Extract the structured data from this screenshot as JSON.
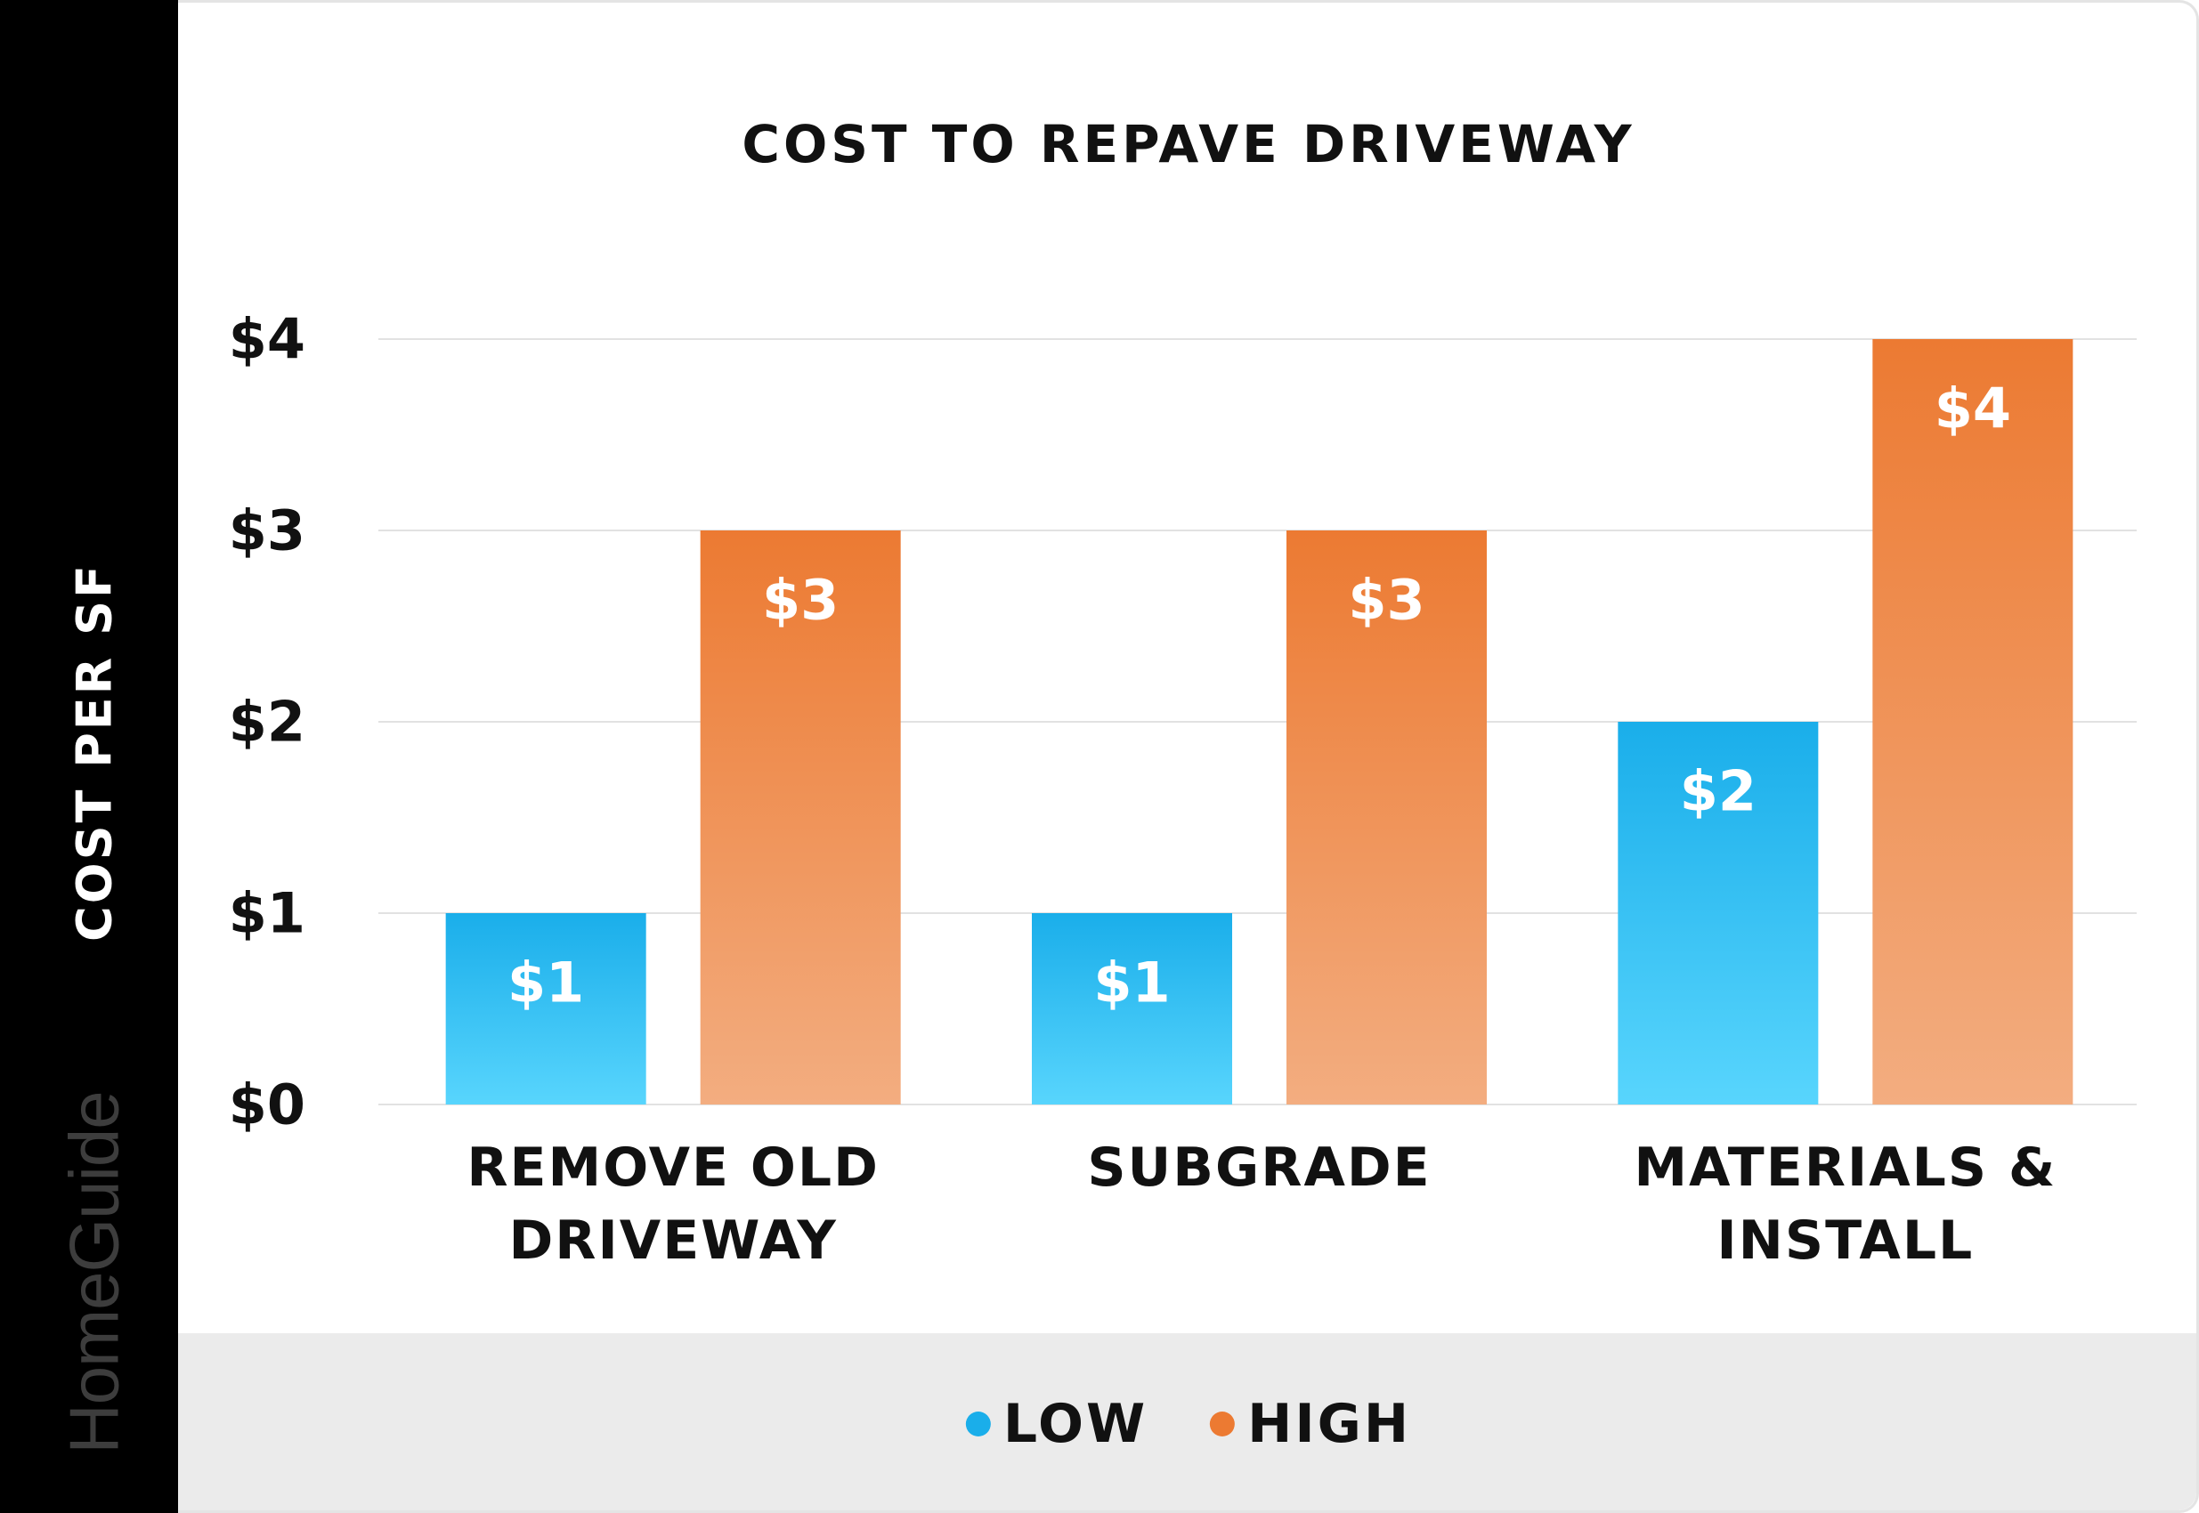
{
  "brand": {
    "logo_text": "HomeGuide"
  },
  "chart_data": {
    "type": "bar",
    "title": "COST TO REPAVE DRIVEWAY",
    "xlabel": "",
    "ylabel": "COST PER SF",
    "categories": [
      "REMOVE OLD DRIVEWAY",
      "SUBGRADE",
      "MATERIALS & INSTALL"
    ],
    "category_lines": [
      [
        "REMOVE OLD",
        "DRIVEWAY"
      ],
      [
        "SUBGRADE"
      ],
      [
        "MATERIALS &",
        "INSTALL"
      ]
    ],
    "series": [
      {
        "name": "LOW",
        "values": [
          1,
          1,
          2
        ],
        "value_labels": [
          "$1",
          "$1",
          "$2"
        ],
        "color": "#1aaeea",
        "color_light": "#58d5fd"
      },
      {
        "name": "HIGH",
        "values": [
          3,
          3,
          4
        ],
        "value_labels": [
          "$3",
          "$3",
          "$4"
        ],
        "color": "#ec7a32",
        "color_light": "#f3ad80"
      }
    ],
    "ylim": [
      0,
      4
    ],
    "yticks": [
      0,
      1,
      2,
      3,
      4
    ],
    "ytick_labels": [
      "$0",
      "$1",
      "$2",
      "$3",
      "$4"
    ],
    "grid": true,
    "legend_position": "bottom-center"
  }
}
